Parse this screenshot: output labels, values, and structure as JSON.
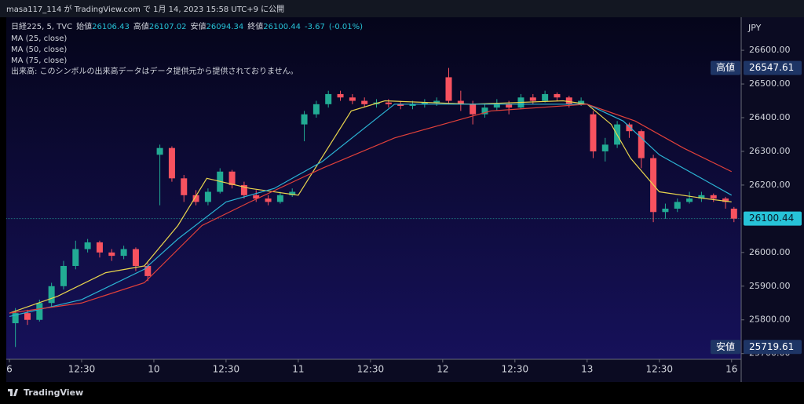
{
  "header": {
    "text": "masa117_114 が TradingView.com で 1月 14, 2023 15:58 UTC+9 に公開"
  },
  "footer": {
    "brand": "TradingView"
  },
  "chart_data": {
    "type": "candlestick",
    "legend": {
      "symbol": "日経225, 5, TVC",
      "open_label": "始値",
      "open": 26106.43,
      "high_label": "高値",
      "high": 26107.02,
      "low_label": "安値",
      "low": 26094.34,
      "close_label": "終値",
      "close": 26100.44,
      "change": -3.67,
      "change_pct": {
        "value": -0.01,
        "label": "(-0.01%)"
      },
      "volume_note": "出来高: このシンボルの出来高データはデータ提供元から提供されておりません。"
    },
    "currency": "JPY",
    "high_marker": {
      "label": "高値",
      "value": 26547.61
    },
    "low_marker": {
      "label": "安値",
      "value": 25719.61
    },
    "last_price": 26100.44,
    "up_color": "#22ab94",
    "down_color": "#f7525f",
    "last_color": "#27c3d8",
    "xlim": [
      -1.3,
      304
    ],
    "ylim": [
      25683,
      26698
    ],
    "xticks": [
      {
        "value": 0,
        "label": "6"
      },
      {
        "value": 30,
        "label": "12:30"
      },
      {
        "value": 60,
        "label": "10"
      },
      {
        "value": 90,
        "label": "12:30"
      },
      {
        "value": 120,
        "label": "11"
      },
      {
        "value": 150,
        "label": "12:30"
      },
      {
        "value": 180,
        "label": "12"
      },
      {
        "value": 210,
        "label": "12:30"
      },
      {
        "value": 240,
        "label": "13"
      },
      {
        "value": 270,
        "label": "12:30"
      },
      {
        "value": 300,
        "label": "16"
      }
    ],
    "yticks": [
      {
        "value": 25700,
        "label": "25700.00"
      },
      {
        "value": 25800,
        "label": "25800.00"
      },
      {
        "value": 25900,
        "label": "25900.00"
      },
      {
        "value": 26000,
        "label": "26000.00"
      },
      {
        "value": 26200,
        "label": "26200.00"
      },
      {
        "value": 26300,
        "label": "26300.00"
      },
      {
        "value": 26400,
        "label": "26400.00"
      },
      {
        "value": 26500,
        "label": "26500.00"
      },
      {
        "value": 26600,
        "label": "26600.00"
      }
    ],
    "grid": false,
    "candles": {
      "x": [
        2.5,
        7.5,
        12.5,
        17.5,
        22.5,
        27.5,
        32.5,
        37.5,
        42.5,
        47.5,
        52.5,
        57.5,
        62.5,
        67.5,
        72.5,
        77.5,
        82.5,
        87.5,
        92.5,
        97.5,
        102.5,
        107.5,
        112.5,
        117.5,
        122.5,
        127.5,
        132.5,
        137.5,
        142.5,
        147.5,
        152.5,
        157.5,
        162.5,
        167.5,
        172.5,
        177.5,
        182.5,
        187.5,
        192.5,
        197.5,
        202.5,
        207.5,
        212.5,
        217.5,
        222.5,
        227.5,
        232.5,
        237.5,
        242.5,
        247.5,
        252.5,
        257.5,
        262.5,
        267.5,
        272.5,
        277.5,
        282.5,
        287.5,
        292.5,
        297.5,
        301
      ],
      "open": [
        25790,
        25820,
        25800,
        25850,
        25900,
        25960,
        26010,
        26030,
        26000,
        25990,
        26010,
        25960,
        26290,
        26310,
        26220,
        26170,
        26150,
        26180,
        26240,
        26200,
        26170,
        26160,
        26150,
        26170,
        26380,
        26410,
        26440,
        26470,
        26460,
        26450,
        26440,
        26445,
        26440,
        26435,
        26440,
        26445,
        26520,
        26450,
        26440,
        26410,
        26430,
        26440,
        26430,
        26460,
        26450,
        26470,
        26460,
        26440,
        26410,
        26300,
        26320,
        26380,
        26360,
        26280,
        26120,
        26130,
        26150,
        26160,
        26170,
        26160,
        26130
      ],
      "high": [
        25835,
        25830,
        25860,
        25910,
        25975,
        26035,
        26040,
        26035,
        26010,
        26020,
        26015,
        25970,
        26320,
        26315,
        26230,
        26185,
        26190,
        26250,
        26245,
        26210,
        26185,
        26170,
        26180,
        26190,
        26420,
        26450,
        26480,
        26480,
        26470,
        26460,
        26455,
        26455,
        26450,
        26450,
        26455,
        26460,
        26547.61,
        26480,
        26450,
        26440,
        26455,
        26450,
        26470,
        26470,
        26480,
        26475,
        26465,
        26460,
        26420,
        26340,
        26390,
        26385,
        26365,
        26290,
        26145,
        26160,
        26180,
        26180,
        26175,
        26165,
        26135
      ],
      "low": [
        25719.61,
        25785,
        25795,
        25840,
        25890,
        25950,
        26000,
        25985,
        25975,
        25980,
        25945,
        25915,
        26140,
        26210,
        26150,
        26140,
        26140,
        26175,
        26190,
        26160,
        26150,
        26140,
        26145,
        26165,
        26330,
        26400,
        26430,
        26450,
        26440,
        26430,
        26430,
        26430,
        26425,
        26425,
        26430,
        26435,
        26440,
        26420,
        26380,
        26400,
        26420,
        26410,
        26425,
        26440,
        26445,
        26450,
        26430,
        26435,
        26280,
        26270,
        26310,
        26340,
        26250,
        26090,
        26100,
        26120,
        26145,
        26150,
        26150,
        26130,
        26090
      ],
      "close": [
        25820,
        25800,
        25850,
        25900,
        25960,
        26010,
        26030,
        26000,
        25990,
        26010,
        25960,
        25930,
        26310,
        26220,
        26170,
        26150,
        26180,
        26240,
        26200,
        26170,
        26160,
        26150,
        26170,
        26180,
        26410,
        26440,
        26470,
        26460,
        26450,
        26440,
        26445,
        26440,
        26435,
        26440,
        26445,
        26450,
        26450,
        26440,
        26410,
        26430,
        26440,
        26430,
        26460,
        26450,
        26470,
        26460,
        26440,
        26450,
        26300,
        26320,
        26380,
        26360,
        26280,
        26120,
        26130,
        26150,
        26160,
        26170,
        26160,
        26150,
        26100.44
      ]
    },
    "series": [
      {
        "name": "MA (25, close)",
        "color": "#e8d44d",
        "x": [
          0,
          20,
          40,
          56,
          70,
          82,
          100,
          120,
          142,
          156,
          192,
          230,
          240,
          250,
          258,
          270,
          289,
          300
        ],
        "values": [
          25820,
          25870,
          25940,
          25960,
          26080,
          26220,
          26190,
          26170,
          26420,
          26450,
          26440,
          26450,
          26440,
          26380,
          26280,
          26180,
          26160,
          26150
        ]
      },
      {
        "name": "MA (50, close)",
        "color": "#2bb3d3",
        "x": [
          0,
          30,
          56,
          70,
          90,
          110,
          130,
          160,
          200,
          240,
          255,
          270,
          290,
          300
        ],
        "values": [
          25810,
          25860,
          25950,
          26040,
          26150,
          26190,
          26270,
          26440,
          26440,
          26440,
          26390,
          26290,
          26210,
          26170
        ]
      },
      {
        "name": "MA (75, close)",
        "color": "#e0403a",
        "x": [
          0,
          30,
          56,
          80,
          100,
          130,
          160,
          200,
          240,
          260,
          280,
          300
        ],
        "values": [
          25820,
          25850,
          25910,
          26080,
          26150,
          26250,
          26340,
          26420,
          26440,
          26390,
          26310,
          26240
        ]
      }
    ]
  }
}
